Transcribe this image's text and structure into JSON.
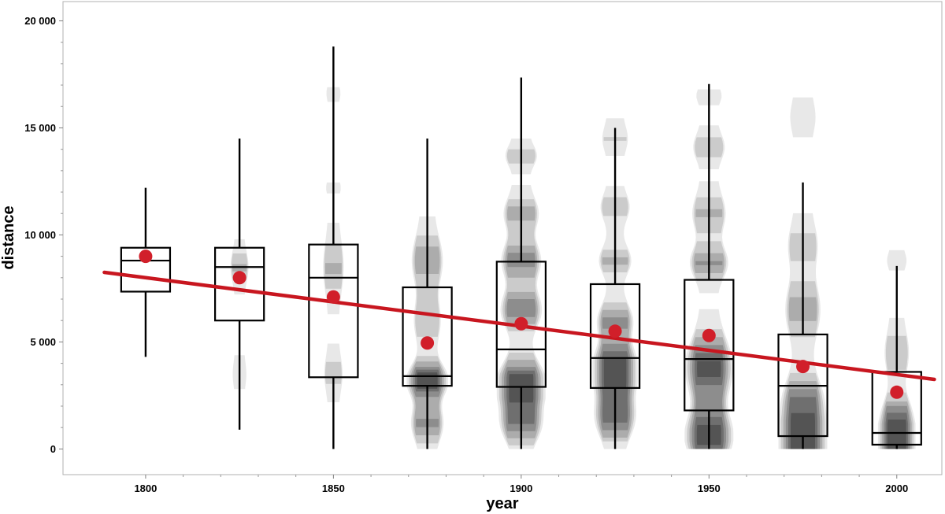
{
  "chart_data": {
    "type": "box-violin-scatter",
    "xlabel": "year",
    "ylabel": "distance",
    "xlim": [
      1778,
      2012
    ],
    "ylim": [
      -1200,
      20900
    ],
    "x_ticks": [
      1800,
      1850,
      1900,
      1950,
      2000
    ],
    "x_tick_labels": [
      "1800",
      "1850",
      "1900",
      "1950",
      "2000"
    ],
    "y_ticks": [
      0,
      5000,
      10000,
      15000,
      20000
    ],
    "y_tick_labels": [
      "0",
      "5 000",
      "10 000",
      "15 000",
      "20 000"
    ],
    "grid": false,
    "colors": {
      "mean_point": "#d11f2a",
      "trend_line": "#c8161f",
      "box": "#000000",
      "density": "#000000"
    },
    "boxes": [
      {
        "year": 1800,
        "q1": 7350,
        "median": 8800,
        "q3": 9400,
        "whisker_low": 4300,
        "whisker_high": 12200,
        "mean": 9000
      },
      {
        "year": 1825,
        "q1": 6000,
        "median": 8500,
        "q3": 9400,
        "whisker_low": 900,
        "whisker_high": 14500,
        "mean": 8000
      },
      {
        "year": 1850,
        "q1": 3350,
        "median": 8000,
        "q3": 9550,
        "whisker_low": 0,
        "whisker_high": 18800,
        "mean": 7100
      },
      {
        "year": 1875,
        "q1": 2950,
        "median": 3400,
        "q3": 7550,
        "whisker_low": 0,
        "whisker_high": 14500,
        "mean": 4950
      },
      {
        "year": 1900,
        "q1": 2900,
        "median": 4650,
        "q3": 8750,
        "whisker_low": 0,
        "whisker_high": 17350,
        "mean": 5850
      },
      {
        "year": 1925,
        "q1": 2850,
        "median": 4250,
        "q3": 7700,
        "whisker_low": 0,
        "whisker_high": 15000,
        "mean": 5500
      },
      {
        "year": 1950,
        "q1": 1800,
        "median": 4200,
        "q3": 7900,
        "whisker_low": 0,
        "whisker_high": 17050,
        "mean": 5300
      },
      {
        "year": 1975,
        "q1": 600,
        "median": 2950,
        "q3": 5350,
        "whisker_low": 0,
        "whisker_high": 12450,
        "mean": 3850
      },
      {
        "year": 2000,
        "q1": 200,
        "median": 750,
        "q3": 3600,
        "whisker_low": 0,
        "whisker_high": 8550,
        "mean": 2650
      }
    ],
    "trend_line": {
      "x": [
        1789,
        2010
      ],
      "y": [
        8250,
        3250
      ]
    },
    "density": [
      {
        "year": 1825,
        "width_years": 7,
        "range": [
          2800,
          10300
        ],
        "levels": [
          {
            "y": 8500,
            "spread": 600,
            "weight": 0.35
          },
          {
            "y": 3500,
            "spread": 500,
            "weight": 0.15
          }
        ]
      },
      {
        "year": 1850,
        "width_years": 8,
        "range": [
          1500,
          16900
        ],
        "levels": [
          {
            "y": 8500,
            "spread": 1000,
            "weight": 0.35
          },
          {
            "y": 3500,
            "spread": 700,
            "weight": 0.25
          },
          {
            "y": 12200,
            "spread": 250,
            "weight": 0.12
          },
          {
            "y": 16600,
            "spread": 250,
            "weight": 0.1
          }
        ]
      },
      {
        "year": 1875,
        "width_years": 11,
        "range": [
          0,
          11500
        ],
        "levels": [
          {
            "y": 3200,
            "spread": 600,
            "weight": 0.95
          },
          {
            "y": 8800,
            "spread": 900,
            "weight": 0.45
          },
          {
            "y": 1200,
            "spread": 700,
            "weight": 0.5
          },
          {
            "y": 6000,
            "spread": 800,
            "weight": 0.3
          }
        ]
      },
      {
        "year": 1900,
        "width_years": 13,
        "range": [
          0,
          15000
        ],
        "levels": [
          {
            "y": 3000,
            "spread": 800,
            "weight": 1.0
          },
          {
            "y": 6500,
            "spread": 700,
            "weight": 0.6
          },
          {
            "y": 8800,
            "spread": 700,
            "weight": 0.55
          },
          {
            "y": 11000,
            "spread": 600,
            "weight": 0.4
          },
          {
            "y": 13700,
            "spread": 400,
            "weight": 0.3
          },
          {
            "y": 1200,
            "spread": 700,
            "weight": 0.6
          }
        ]
      },
      {
        "year": 1925,
        "width_years": 12,
        "range": [
          0,
          15800
        ],
        "levels": [
          {
            "y": 3700,
            "spread": 900,
            "weight": 1.0
          },
          {
            "y": 1500,
            "spread": 800,
            "weight": 0.7
          },
          {
            "y": 6000,
            "spread": 600,
            "weight": 0.5
          },
          {
            "y": 8800,
            "spread": 500,
            "weight": 0.4
          },
          {
            "y": 11300,
            "spread": 500,
            "weight": 0.3
          },
          {
            "y": 14500,
            "spread": 500,
            "weight": 0.2
          }
        ]
      },
      {
        "year": 1950,
        "width_years": 13,
        "range": [
          0,
          16800
        ],
        "levels": [
          {
            "y": 600,
            "spread": 900,
            "weight": 0.9
          },
          {
            "y": 3800,
            "spread": 1100,
            "weight": 0.85
          },
          {
            "y": 8700,
            "spread": 600,
            "weight": 0.5
          },
          {
            "y": 11000,
            "spread": 700,
            "weight": 0.35
          },
          {
            "y": 14100,
            "spread": 500,
            "weight": 0.3
          },
          {
            "y": 16500,
            "spread": 300,
            "weight": 0.15
          }
        ]
      },
      {
        "year": 1975,
        "width_years": 13,
        "range": [
          0,
          16800
        ],
        "levels": [
          {
            "y": 300,
            "spread": 700,
            "weight": 1.0
          },
          {
            "y": 2000,
            "spread": 1000,
            "weight": 0.7
          },
          {
            "y": 6500,
            "spread": 1000,
            "weight": 0.4
          },
          {
            "y": 9500,
            "spread": 800,
            "weight": 0.25
          },
          {
            "y": 15500,
            "spread": 600,
            "weight": 0.15
          }
        ]
      },
      {
        "year": 2000,
        "width_years": 10,
        "range": [
          0,
          9500
        ],
        "levels": [
          {
            "y": 300,
            "spread": 600,
            "weight": 1.0
          },
          {
            "y": 1500,
            "spread": 700,
            "weight": 0.6
          },
          {
            "y": 4500,
            "spread": 800,
            "weight": 0.3
          },
          {
            "y": 8800,
            "spread": 300,
            "weight": 0.15
          }
        ]
      }
    ]
  }
}
